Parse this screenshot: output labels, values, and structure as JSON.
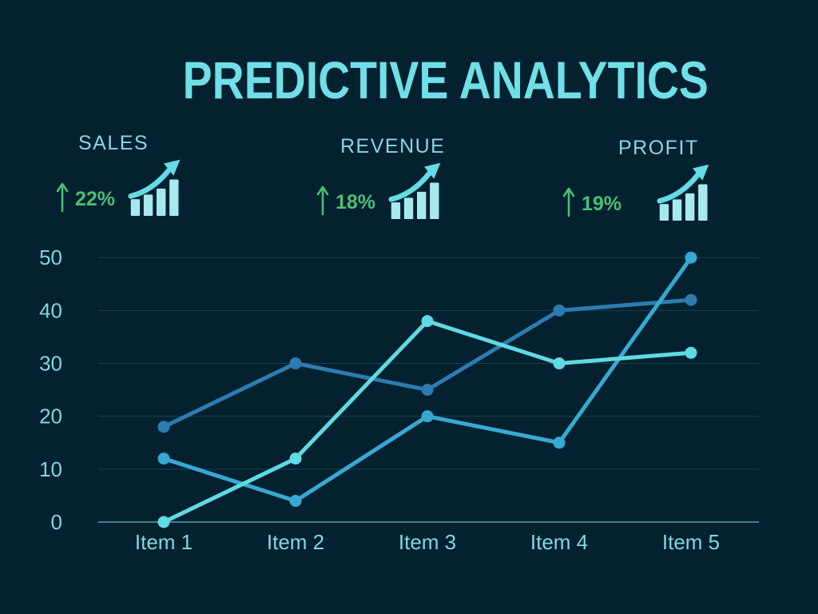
{
  "title": "PREDICTIVE ANALYTICS",
  "kpis": [
    {
      "label": "SALES",
      "change": "22%",
      "direction": "up"
    },
    {
      "label": "REVENUE",
      "change": "18%",
      "direction": "up"
    },
    {
      "label": "PROFIT",
      "change": "19%",
      "direction": "up"
    }
  ],
  "icons": {
    "trend": "up-arrow-icon",
    "growth": "growth-chart-icon"
  },
  "colors": {
    "background": "#03212F",
    "title": "#70DFE8",
    "kpi_label": "#8CD7E0",
    "kpi_change_green": "#4CBE74",
    "icon_bars": "#A7E9EF",
    "icon_arrow": "#64DBE5",
    "axis_text": "#7ED8E1",
    "gridline": "#17434F",
    "baseline": "#3E8494"
  },
  "chart_data": {
    "type": "line",
    "categories": [
      "Item 1",
      "Item 2",
      "Item 3",
      "Item 4",
      "Item 5"
    ],
    "series": [
      {
        "name": "series-1",
        "color": "#2C7CB0",
        "values": [
          18,
          30,
          25,
          40,
          42
        ]
      },
      {
        "name": "series-2",
        "color": "#37A9D2",
        "values": [
          12,
          4,
          20,
          15,
          50
        ]
      },
      {
        "name": "series-3",
        "color": "#5FDAE3",
        "values": [
          0,
          12,
          38,
          30,
          32
        ]
      }
    ],
    "ylim": [
      0,
      50
    ],
    "yticks": [
      0,
      10,
      20,
      30,
      40,
      50
    ],
    "xlabel": "",
    "ylabel": "",
    "grid": true,
    "legend": "none",
    "markers": true
  }
}
